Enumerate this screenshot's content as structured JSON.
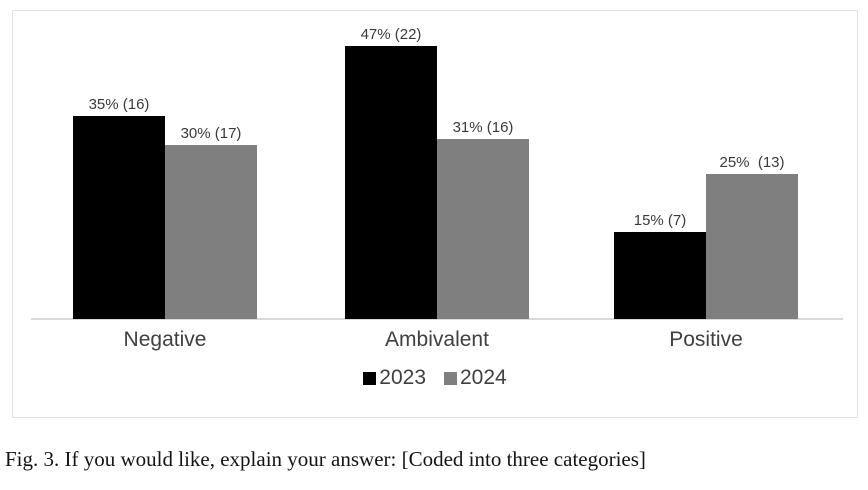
{
  "chart_data": {
    "type": "bar",
    "title": "",
    "xlabel": "",
    "ylabel": "",
    "categories": [
      "Negative",
      "Ambivalent",
      "Positive"
    ],
    "series": [
      {
        "name": "2023",
        "color": "#000000",
        "values": [
          35,
          47,
          15
        ],
        "counts": [
          16,
          22,
          7
        ],
        "labels": [
          "35% (16)",
          "47% (22)",
          "15% (7)"
        ]
      },
      {
        "name": "2024",
        "color": "#7f7f7f",
        "values": [
          30,
          31,
          25
        ],
        "counts": [
          17,
          16,
          13
        ],
        "labels": [
          "30% (17)",
          "31% (16)",
          "25%  (13)"
        ]
      }
    ],
    "ylim": [
      0,
      50
    ],
    "grid": false,
    "y_axis_visible": false,
    "legend_position": "bottom",
    "value_label_format": "percent (count)",
    "axis_line_color": "#d9d9d9",
    "frame_border_color": "#e2e2e2",
    "label_text_color": "#404040"
  },
  "caption": "Fig. 3. If you would like, explain your answer: [Coded into three categories]"
}
